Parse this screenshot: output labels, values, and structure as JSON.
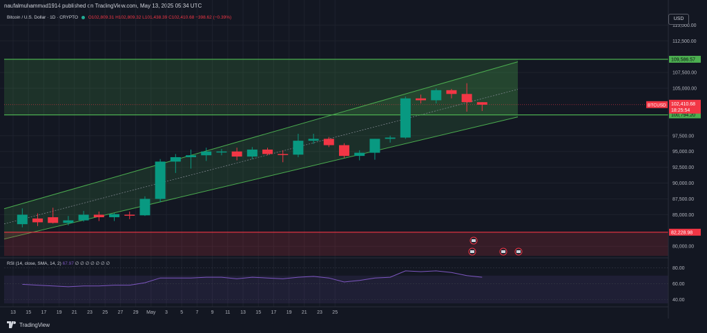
{
  "header": {
    "published": "naufalmuhammad1914 published on TradingView.com, May 13, 2025 05:34 UTC",
    "symbol_info": "Bitcoin / U.S. Dollar · 1D · CRYPTO",
    "ohlc": "O102,809.31  H102,809.32  L101,438.39  C102,410.68  −398.62 (−0.39%)"
  },
  "currency_button": "USD",
  "brand": "TradingView",
  "colors": {
    "up": "#089981",
    "down": "#f23645",
    "channel": "#4caf50",
    "support": "#f23645",
    "rsi": "#7e57c2"
  },
  "chart_data": [
    {
      "type": "candlestick",
      "x_tick_labels": [
        "13",
        "15",
        "17",
        "19",
        "21",
        "23",
        "25",
        "27",
        "29",
        "May",
        "3",
        "5",
        "7",
        "9",
        "11",
        "13",
        "15",
        "17",
        "19",
        "21",
        "23",
        "25"
      ],
      "y_tick_labels": [
        "115,000.00",
        "112,500.00",
        "107,500.00",
        "105,000.00",
        "97,500.00",
        "95,000.00",
        "92,500.00",
        "90,000.00",
        "87,500.00",
        "85,000.00",
        "80,000.00"
      ],
      "ylim": [
        78500,
        117000
      ],
      "candles": [
        {
          "o": 83500,
          "h": 86000,
          "l": 83000,
          "c": 85000
        },
        {
          "o": 84400,
          "h": 85200,
          "l": 83200,
          "c": 83800
        },
        {
          "o": 84600,
          "h": 86100,
          "l": 83600,
          "c": 83700
        },
        {
          "o": 83700,
          "h": 84800,
          "l": 83300,
          "c": 84100
        },
        {
          "o": 84100,
          "h": 85600,
          "l": 83900,
          "c": 85000
        },
        {
          "o": 85000,
          "h": 85500,
          "l": 84000,
          "c": 84600
        },
        {
          "o": 84600,
          "h": 85300,
          "l": 84000,
          "c": 85100
        },
        {
          "o": 85000,
          "h": 85500,
          "l": 84300,
          "c": 84900
        },
        {
          "o": 84900,
          "h": 87900,
          "l": 84800,
          "c": 87500
        },
        {
          "o": 87500,
          "h": 93800,
          "l": 87000,
          "c": 93400
        },
        {
          "o": 93400,
          "h": 94600,
          "l": 91600,
          "c": 94100
        },
        {
          "o": 94100,
          "h": 95300,
          "l": 92300,
          "c": 94400
        },
        {
          "o": 94400,
          "h": 95600,
          "l": 93500,
          "c": 95000
        },
        {
          "o": 95000,
          "h": 95400,
          "l": 94400,
          "c": 95000
        },
        {
          "o": 95000,
          "h": 95600,
          "l": 93600,
          "c": 94200
        },
        {
          "o": 94200,
          "h": 95700,
          "l": 93800,
          "c": 95300
        },
        {
          "o": 95300,
          "h": 95600,
          "l": 94400,
          "c": 94600
        },
        {
          "o": 94600,
          "h": 95200,
          "l": 93300,
          "c": 94500
        },
        {
          "o": 94500,
          "h": 97800,
          "l": 94100,
          "c": 96700
        },
        {
          "o": 96700,
          "h": 97800,
          "l": 96200,
          "c": 97000
        },
        {
          "o": 97000,
          "h": 97300,
          "l": 95700,
          "c": 96000
        },
        {
          "o": 96000,
          "h": 96300,
          "l": 94000,
          "c": 94300
        },
        {
          "o": 94300,
          "h": 95200,
          "l": 93600,
          "c": 94800
        },
        {
          "o": 94800,
          "h": 97000,
          "l": 93700,
          "c": 97000
        },
        {
          "o": 97000,
          "h": 97500,
          "l": 96400,
          "c": 97200
        },
        {
          "o": 97200,
          "h": 103700,
          "l": 97000,
          "c": 103400
        },
        {
          "o": 103400,
          "h": 104000,
          "l": 102600,
          "c": 103100
        },
        {
          "o": 103100,
          "h": 105000,
          "l": 102600,
          "c": 104700
        },
        {
          "o": 104700,
          "h": 104900,
          "l": 103400,
          "c": 104100
        },
        {
          "o": 104100,
          "h": 105800,
          "l": 101300,
          "c": 102800
        },
        {
          "o": 102800,
          "h": 102800,
          "l": 101400,
          "c": 102400
        }
      ],
      "levels": [
        {
          "label": "109,586.57",
          "value": 109586.57
        },
        {
          "label": "100,794.20",
          "value": 100794.2
        },
        {
          "label": "82,228.98",
          "value": 82228.98
        }
      ],
      "price_label": {
        "symbol": "BTCUSD",
        "price": "102,410.68",
        "countdown": "18:25:54",
        "value": 102410.68
      }
    },
    {
      "type": "line",
      "name": "RSI (14, close, SMA, 14, 2)",
      "legend": "RSI (14, close, SMA, 14, 2)",
      "legend_value": "67.97",
      "legend_extra": "∅ ∅ ∅ ∅ ∅ ∅ ∅",
      "y_tick_labels": [
        "80.00",
        "60.00",
        "40.00"
      ],
      "ylim": [
        35,
        82
      ],
      "values": [
        59,
        58,
        57,
        56,
        57,
        57,
        58,
        58,
        61,
        67,
        67,
        67,
        68,
        68,
        66,
        68,
        67,
        66,
        68,
        69,
        67,
        62,
        64,
        67,
        68,
        76,
        75,
        76,
        74,
        70,
        67.97
      ]
    }
  ]
}
